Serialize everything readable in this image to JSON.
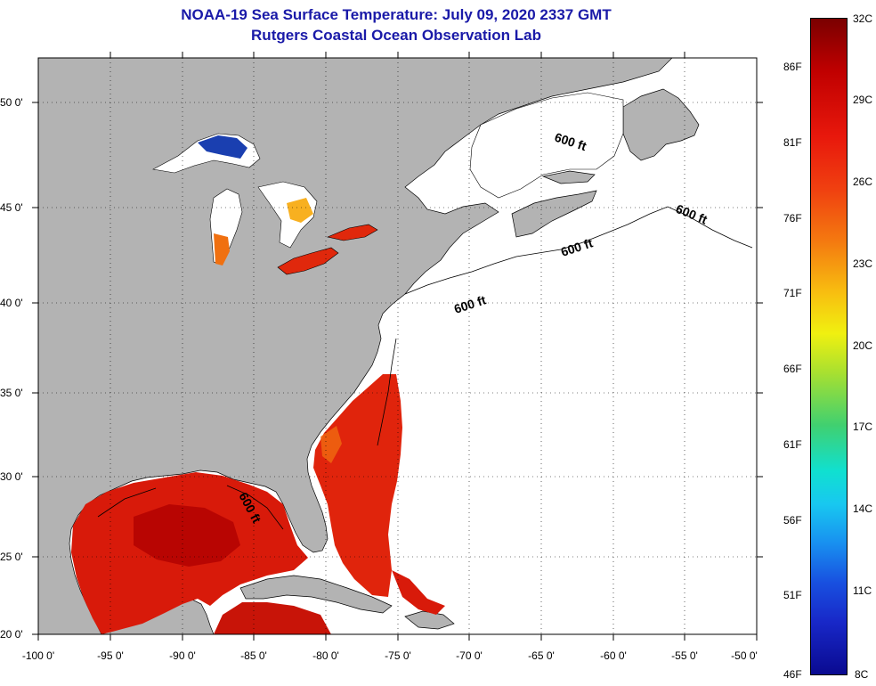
{
  "title": {
    "line1": "NOAA-19 Sea Surface Temperature:  July 09, 2020 2337 GMT",
    "line2": "Rutgers Coastal Ocean Observation Lab"
  },
  "x_axis": {
    "ticks": [
      "-100 0'",
      "-95 0'",
      "-90 0'",
      "-85 0'",
      "-80 0'",
      "-75 0'",
      "-70 0'",
      "-65 0'",
      "-60 0'",
      "-55 0'",
      "-50 0'"
    ]
  },
  "y_axis": {
    "ticks": [
      "50 0'",
      "45 0'",
      "40 0'",
      "35 0'",
      "30 0'",
      "25 0'",
      "20 0'"
    ]
  },
  "contour_label": "600 ft",
  "colorbar": {
    "fahrenheit": [
      "86F",
      "81F",
      "76F",
      "71F",
      "66F",
      "61F",
      "56F",
      "51F",
      "46F"
    ],
    "celsius": [
      "32C",
      "29C",
      "26C",
      "23C",
      "20C",
      "17C",
      "14C",
      "11C",
      "8C"
    ]
  },
  "colors": {
    "land": "#b3b3b3",
    "title": "#1a1aa8",
    "sst_warm": "#d81a0a",
    "sst_hot": "#b00000",
    "lake_cold": "#1a3fb0"
  }
}
